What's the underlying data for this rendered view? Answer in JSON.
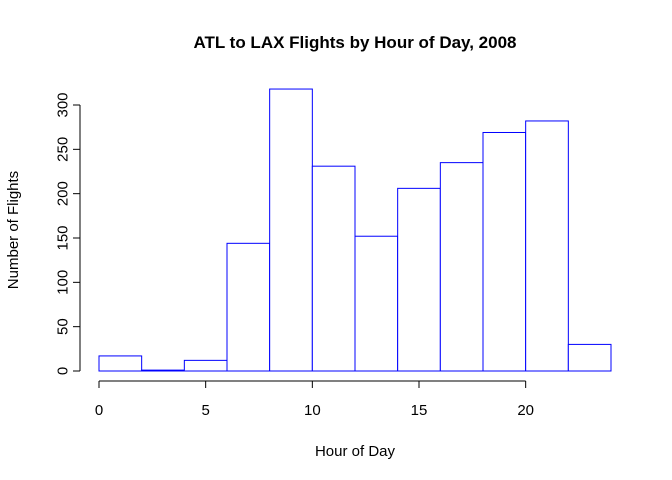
{
  "chart_data": {
    "type": "bar",
    "title": "ATL to LAX Flights by Hour of Day, 2008",
    "xlabel": "Hour of Day",
    "ylabel": "Number of Flights",
    "bins": [
      {
        "start": 0,
        "end": 2,
        "value": 17
      },
      {
        "start": 2,
        "end": 4,
        "value": 1
      },
      {
        "start": 4,
        "end": 6,
        "value": 12
      },
      {
        "start": 6,
        "end": 8,
        "value": 144
      },
      {
        "start": 8,
        "end": 10,
        "value": 318
      },
      {
        "start": 10,
        "end": 12,
        "value": 231
      },
      {
        "start": 12,
        "end": 14,
        "value": 152
      },
      {
        "start": 14,
        "end": 16,
        "value": 206
      },
      {
        "start": 16,
        "end": 18,
        "value": 235
      },
      {
        "start": 18,
        "end": 20,
        "value": 269
      },
      {
        "start": 20,
        "end": 22,
        "value": 282
      },
      {
        "start": 22,
        "end": 24,
        "value": 30
      }
    ],
    "xticks": [
      0,
      5,
      10,
      15,
      20
    ],
    "yticks": [
      0,
      50,
      100,
      150,
      200,
      250,
      300
    ],
    "xlim": [
      0,
      24
    ],
    "ylim": [
      0,
      300
    ],
    "bar_color": "#0000ff",
    "grid": false,
    "legend": "none"
  }
}
